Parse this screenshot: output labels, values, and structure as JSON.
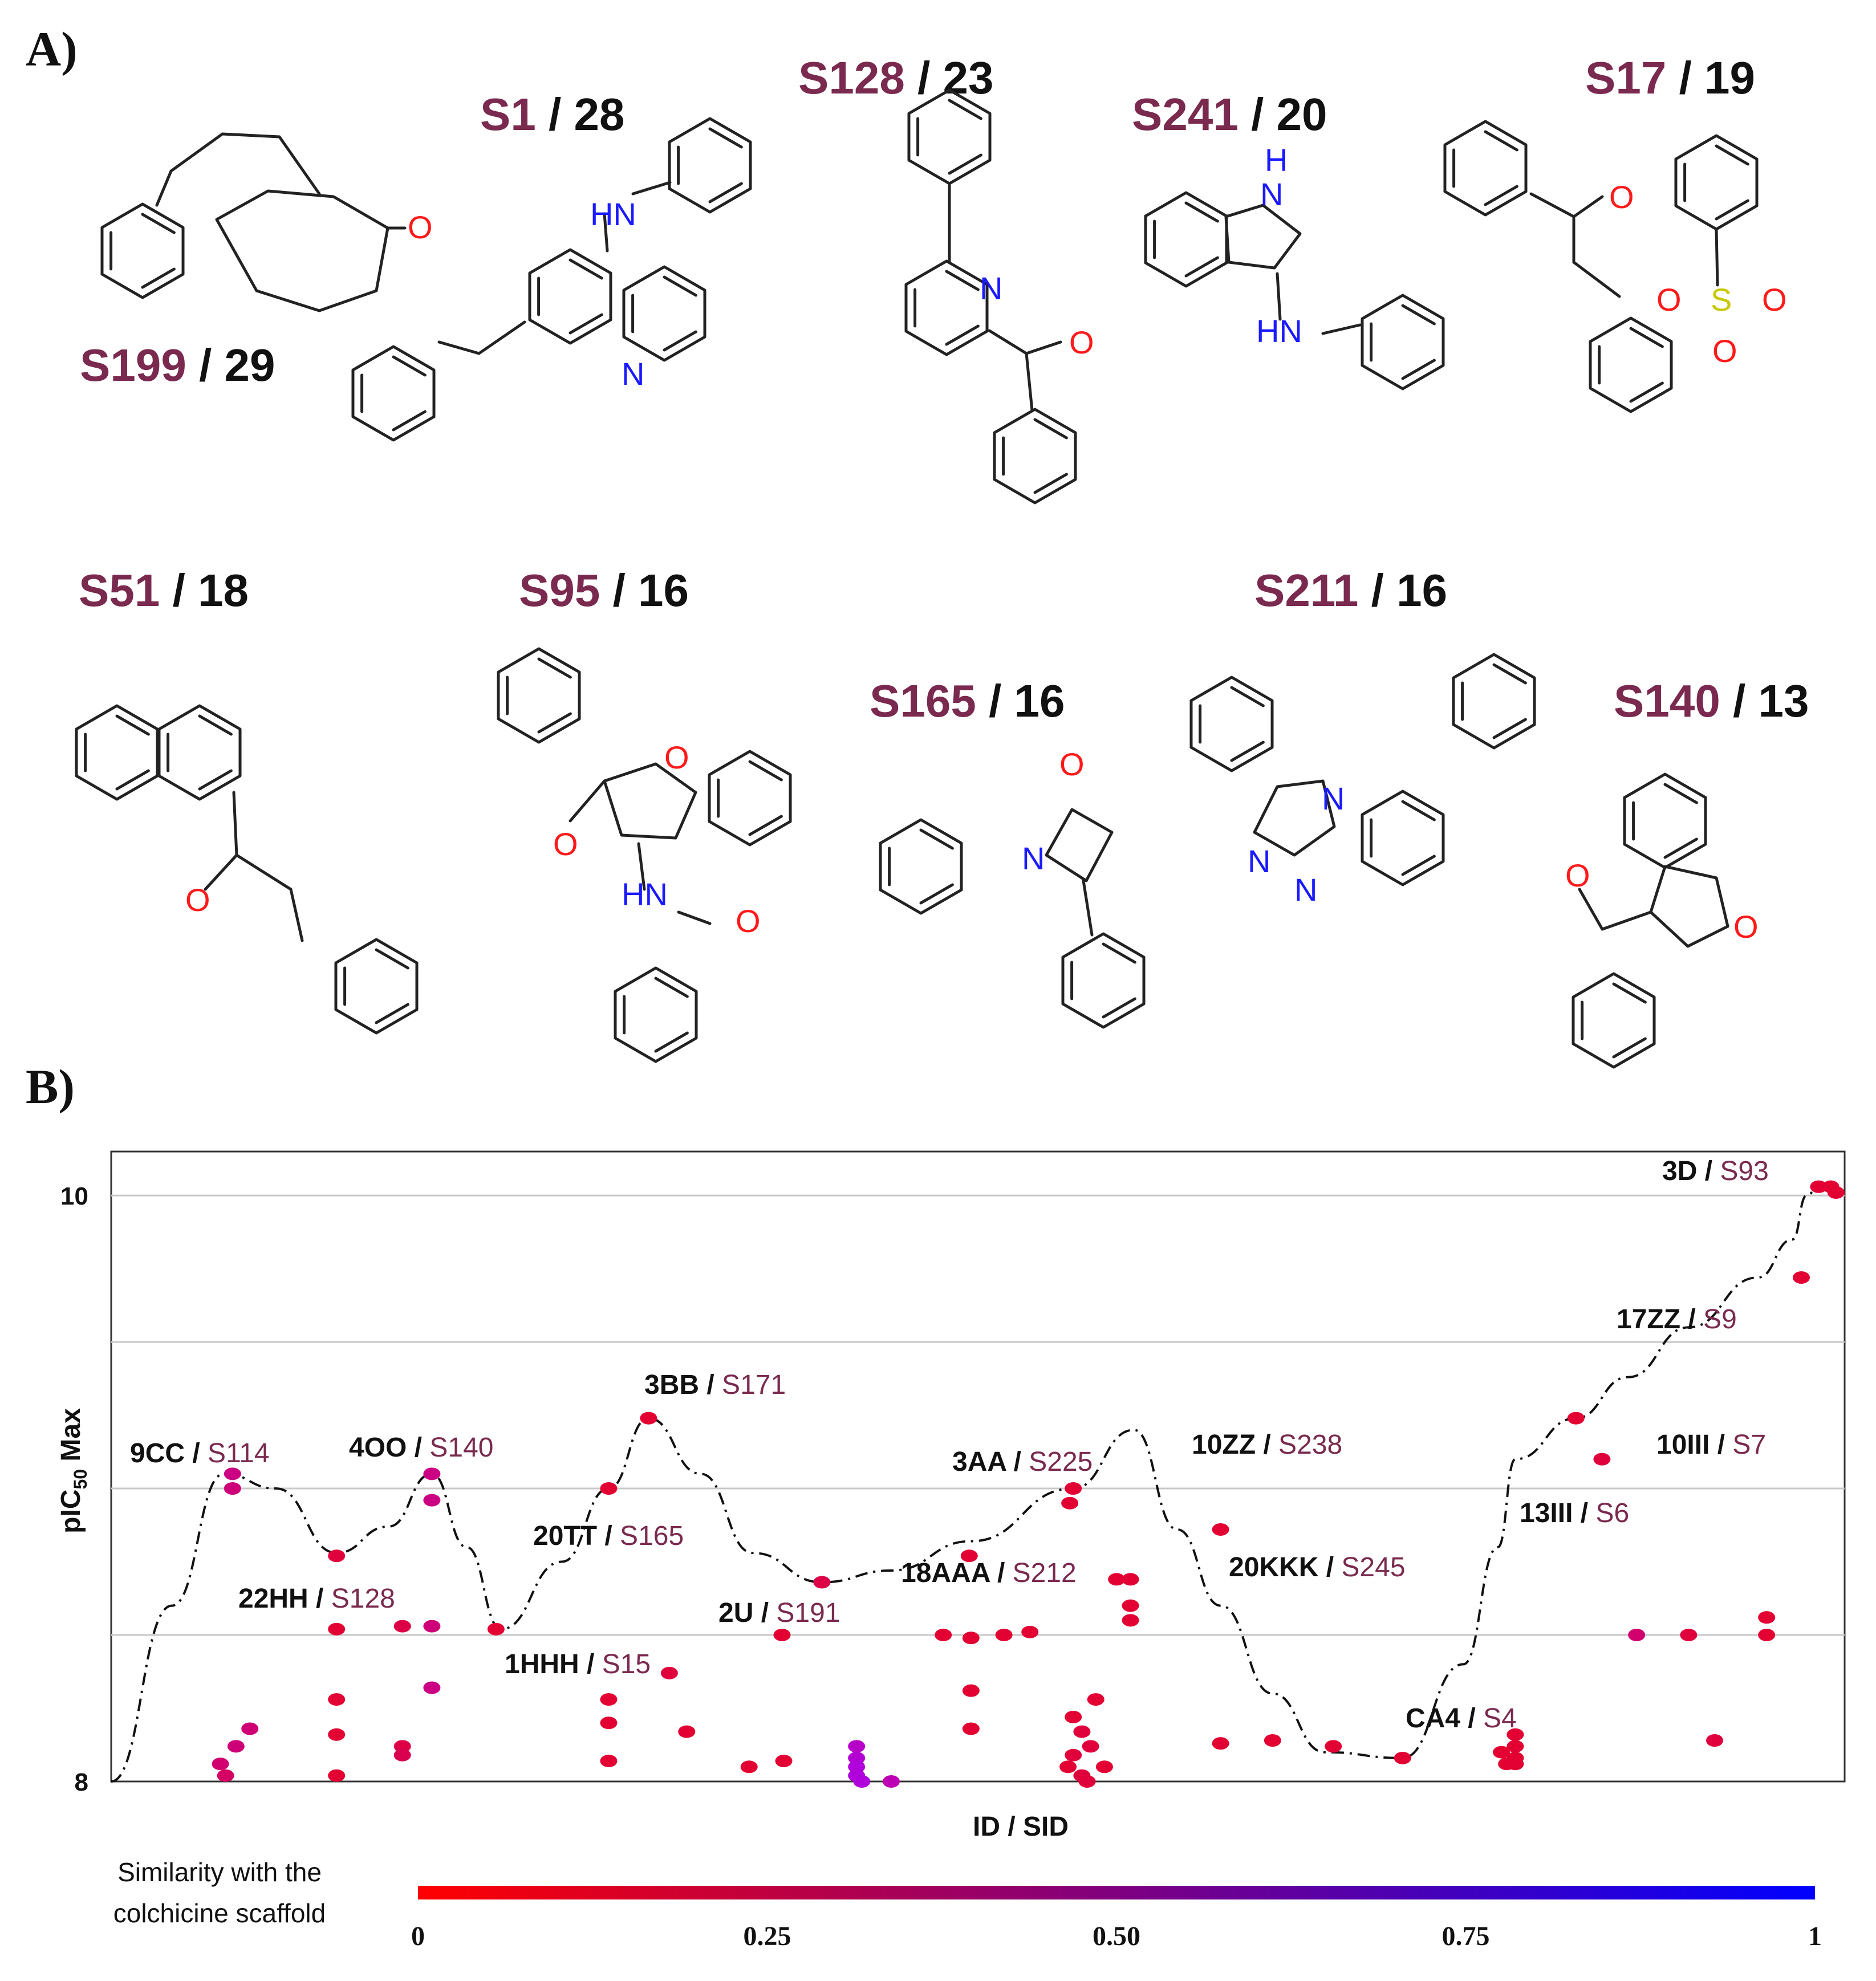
{
  "panel_a": {
    "label": "A)",
    "compounds": [
      {
        "sid": "S199",
        "sep": " / ",
        "count": "29"
      },
      {
        "sid": "S1",
        "sep": " / ",
        "count": "28"
      },
      {
        "sid": "S128",
        "sep": " / ",
        "count": "23"
      },
      {
        "sid": "S241",
        "sep": " / ",
        "count": "20"
      },
      {
        "sid": "S17",
        "sep": " / ",
        "count": "19"
      },
      {
        "sid": "S51",
        "sep": " / ",
        "count": "18"
      },
      {
        "sid": "S95",
        "sep": " / ",
        "count": "16"
      },
      {
        "sid": "S165",
        "sep": " / ",
        "count": "16"
      },
      {
        "sid": "S211",
        "sep": " / ",
        "count": "16"
      },
      {
        "sid": "S140",
        "sep": " / ",
        "count": "13"
      }
    ],
    "atoms": {
      "O": "O",
      "N": "N",
      "HN": "HN",
      "H": "H",
      "S": "S"
    }
  },
  "panel_b": {
    "label": "B)"
  },
  "chart_data": {
    "type": "scatter",
    "title": "",
    "xlabel": "ID  / SID",
    "ylabel": "pIC50 Max",
    "ylabel_main": "pIC",
    "ylabel_sub": "50",
    "ylabel_tail": " Max",
    "ylim": [
      8.0,
      10.15
    ],
    "yticks": [
      {
        "value": 8,
        "label": "8"
      },
      {
        "value": 10,
        "label": "10"
      }
    ],
    "gridlines": [
      8.5,
      9.0,
      9.5,
      10.0
    ],
    "xlim": [
      0,
      100
    ],
    "colorbar": {
      "label_line1": "Similarity with the",
      "label_line2": "colchicine scaffold",
      "range": [
        0,
        1
      ],
      "colors": [
        "#ff0000",
        "#0000ff"
      ],
      "ticks": [
        {
          "value": 0,
          "label": "0"
        },
        {
          "value": 0.25,
          "label": "0.25"
        },
        {
          "value": 0.5,
          "label": "0.50"
        },
        {
          "value": 0.75,
          "label": "0.75"
        },
        {
          "value": 1,
          "label": "1"
        }
      ]
    },
    "annotations": [
      {
        "id": "9CC",
        "sid": "S114",
        "x": 6.5,
        "y": 9.05
      },
      {
        "id": "4OO",
        "sid": "S140",
        "x": 18.5,
        "y": 9.05
      },
      {
        "id": "3BB",
        "sid": "S171",
        "x": 31.0,
        "y": 9.24
      },
      {
        "id": "22HH",
        "sid": "S128",
        "x": 13.0,
        "y": 8.78
      },
      {
        "id": "20TT",
        "sid": "S165",
        "x": 28.0,
        "y": 8.92
      },
      {
        "id": "1HHH",
        "sid": "S15",
        "x": 31.5,
        "y": 8.56
      },
      {
        "id": "2U",
        "sid": "S191",
        "x": 39.5,
        "y": 8.68
      },
      {
        "id": "3AA",
        "sid": "S225",
        "x": 54.5,
        "y": 9.1
      },
      {
        "id": "18AAA",
        "sid": "S212",
        "x": 57.5,
        "y": 8.71
      },
      {
        "id": "10ZZ",
        "sid": "S238",
        "x": 68.5,
        "y": 9.13
      },
      {
        "id": "20KKK",
        "sid": "S245",
        "x": 71.0,
        "y": 8.7
      },
      {
        "id": "CA4",
        "sid": "S4",
        "x": 82.5,
        "y": 8.18
      },
      {
        "id": "13III",
        "sid": "S6",
        "x": 86.0,
        "y": 8.91
      },
      {
        "id": "10III",
        "sid": "S7",
        "x": 95.5,
        "y": 9.13
      },
      {
        "id": "17ZZ",
        "sid": "S9",
        "x": 92.0,
        "y": 8.27
      },
      {
        "id": "3D",
        "sid": "S93",
        "x": 93.0,
        "y": 8.2
      }
    ],
    "points": [
      {
        "x": 7.0,
        "y": 9.05,
        "s": 0.45
      },
      {
        "x": 7.0,
        "y": 9.0,
        "s": 0.4
      },
      {
        "x": 6.3,
        "y": 8.06,
        "s": 0.35
      },
      {
        "x": 6.6,
        "y": 8.02,
        "s": 0.3
      },
      {
        "x": 7.2,
        "y": 8.12,
        "s": 0.4
      },
      {
        "x": 8.0,
        "y": 8.18,
        "s": 0.38
      },
      {
        "x": 13.0,
        "y": 8.77,
        "s": 0.1
      },
      {
        "x": 13.0,
        "y": 8.52,
        "s": 0.05
      },
      {
        "x": 13.0,
        "y": 8.28,
        "s": 0.05
      },
      {
        "x": 13.0,
        "y": 8.16,
        "s": 0.05
      },
      {
        "x": 13.0,
        "y": 8.02,
        "s": 0.05
      },
      {
        "x": 16.8,
        "y": 8.53,
        "s": 0.15
      },
      {
        "x": 16.8,
        "y": 8.12,
        "s": 0.15
      },
      {
        "x": 16.8,
        "y": 8.09,
        "s": 0.2
      },
      {
        "x": 18.5,
        "y": 9.05,
        "s": 0.45
      },
      {
        "x": 18.5,
        "y": 8.96,
        "s": 0.45
      },
      {
        "x": 18.5,
        "y": 8.53,
        "s": 0.4
      },
      {
        "x": 18.5,
        "y": 8.32,
        "s": 0.45
      },
      {
        "x": 22.2,
        "y": 8.52,
        "s": 0.05
      },
      {
        "x": 28.7,
        "y": 9.0,
        "s": 0.05
      },
      {
        "x": 28.7,
        "y": 8.28,
        "s": 0.05
      },
      {
        "x": 28.7,
        "y": 8.2,
        "s": 0.05
      },
      {
        "x": 28.7,
        "y": 8.07,
        "s": 0.05
      },
      {
        "x": 31.0,
        "y": 9.24,
        "s": 0.05
      },
      {
        "x": 32.2,
        "y": 8.37,
        "s": 0.1
      },
      {
        "x": 33.2,
        "y": 8.17,
        "s": 0.05
      },
      {
        "x": 36.8,
        "y": 8.05,
        "s": 0.05
      },
      {
        "x": 38.8,
        "y": 8.07,
        "s": 0.05
      },
      {
        "x": 38.7,
        "y": 8.5,
        "s": 0.05
      },
      {
        "x": 41.0,
        "y": 8.68,
        "s": 0.15
      },
      {
        "x": 43.0,
        "y": 8.12,
        "s": 0.8
      },
      {
        "x": 43.0,
        "y": 8.08,
        "s": 0.85
      },
      {
        "x": 43.0,
        "y": 8.05,
        "s": 0.9
      },
      {
        "x": 43.0,
        "y": 8.02,
        "s": 0.9
      },
      {
        "x": 43.3,
        "y": 8.0,
        "s": 0.9
      },
      {
        "x": 45.0,
        "y": 8.0,
        "s": 0.7
      },
      {
        "x": 48.0,
        "y": 8.5,
        "s": 0.05
      },
      {
        "x": 49.5,
        "y": 8.77,
        "s": 0.05
      },
      {
        "x": 49.6,
        "y": 8.49,
        "s": 0.05
      },
      {
        "x": 49.6,
        "y": 8.31,
        "s": 0.05
      },
      {
        "x": 49.6,
        "y": 8.18,
        "s": 0.05
      },
      {
        "x": 51.5,
        "y": 8.5,
        "s": 0.05
      },
      {
        "x": 53.0,
        "y": 8.51,
        "s": 0.05
      },
      {
        "x": 55.5,
        "y": 9.0,
        "s": 0.05
      },
      {
        "x": 55.3,
        "y": 8.95,
        "s": 0.05
      },
      {
        "x": 55.5,
        "y": 8.22,
        "s": 0.05
      },
      {
        "x": 56.0,
        "y": 8.17,
        "s": 0.1
      },
      {
        "x": 56.5,
        "y": 8.12,
        "s": 0.1
      },
      {
        "x": 55.5,
        "y": 8.09,
        "s": 0.1
      },
      {
        "x": 55.2,
        "y": 8.05,
        "s": 0.05
      },
      {
        "x": 56.0,
        "y": 8.02,
        "s": 0.1
      },
      {
        "x": 56.3,
        "y": 8.0,
        "s": 0.1
      },
      {
        "x": 56.8,
        "y": 8.28,
        "s": 0.05
      },
      {
        "x": 57.3,
        "y": 8.05,
        "s": 0.05
      },
      {
        "x": 58.0,
        "y": 8.69,
        "s": 0.05
      },
      {
        "x": 58.8,
        "y": 8.69,
        "s": 0.05
      },
      {
        "x": 58.8,
        "y": 8.6,
        "s": 0.05
      },
      {
        "x": 58.8,
        "y": 8.55,
        "s": 0.05
      },
      {
        "x": 64.0,
        "y": 8.86,
        "s": 0.05
      },
      {
        "x": 64.0,
        "y": 8.13,
        "s": 0.05
      },
      {
        "x": 67.0,
        "y": 8.14,
        "s": 0.05
      },
      {
        "x": 70.5,
        "y": 8.12,
        "s": 0.05
      },
      {
        "x": 74.5,
        "y": 8.08,
        "s": 0.05
      },
      {
        "x": 80.2,
        "y": 8.1,
        "s": 0.05
      },
      {
        "x": 80.5,
        "y": 8.06,
        "s": 0.05
      },
      {
        "x": 81.0,
        "y": 8.16,
        "s": 0.05
      },
      {
        "x": 81.0,
        "y": 8.12,
        "s": 0.05
      },
      {
        "x": 81.0,
        "y": 8.08,
        "s": 0.05
      },
      {
        "x": 81.0,
        "y": 8.06,
        "s": 0.05
      },
      {
        "x": 84.5,
        "y": 9.24,
        "s": 0.05
      },
      {
        "x": 86.0,
        "y": 9.1,
        "s": 0.1
      },
      {
        "x": 88.0,
        "y": 8.5,
        "s": 0.35
      },
      {
        "x": 91.0,
        "y": 8.5,
        "s": 0.1
      },
      {
        "x": 92.5,
        "y": 8.14,
        "s": 0.1
      },
      {
        "x": 95.5,
        "y": 8.56,
        "s": 0.05
      },
      {
        "x": 95.5,
        "y": 8.5,
        "s": 0.05
      },
      {
        "x": 97.5,
        "y": 9.72,
        "s": 0.05
      },
      {
        "x": 98.5,
        "y": 10.03,
        "s": 0.05
      },
      {
        "x": 99.2,
        "y": 10.03,
        "s": 0.05
      },
      {
        "x": 99.5,
        "y": 10.01,
        "s": 0.05
      }
    ],
    "trend_line": [
      [
        0,
        8.0
      ],
      [
        3.5,
        8.6
      ],
      [
        6.5,
        9.05
      ],
      [
        9.5,
        9.0
      ],
      [
        13.0,
        8.78
      ],
      [
        16.0,
        8.87
      ],
      [
        18.5,
        9.05
      ],
      [
        20.5,
        8.8
      ],
      [
        22.5,
        8.52
      ],
      [
        26.0,
        8.75
      ],
      [
        28.7,
        9.0
      ],
      [
        31.0,
        9.24
      ],
      [
        34.0,
        9.05
      ],
      [
        37.0,
        8.78
      ],
      [
        41.0,
        8.68
      ],
      [
        45.0,
        8.72
      ],
      [
        49.6,
        8.82
      ],
      [
        55.5,
        9.0
      ],
      [
        59.0,
        9.2
      ],
      [
        61.5,
        8.86
      ],
      [
        64.0,
        8.6
      ],
      [
        67.0,
        8.3
      ],
      [
        70.0,
        8.1
      ],
      [
        74.5,
        8.08
      ],
      [
        78.0,
        8.4
      ],
      [
        80.0,
        8.8
      ],
      [
        81.0,
        9.1
      ],
      [
        84.5,
        9.24
      ],
      [
        87.5,
        9.38
      ],
      [
        91.0,
        9.55
      ],
      [
        95.0,
        9.72
      ],
      [
        97.0,
        9.85
      ],
      [
        97.8,
        10.0
      ],
      [
        98.5,
        10.03
      ]
    ]
  }
}
